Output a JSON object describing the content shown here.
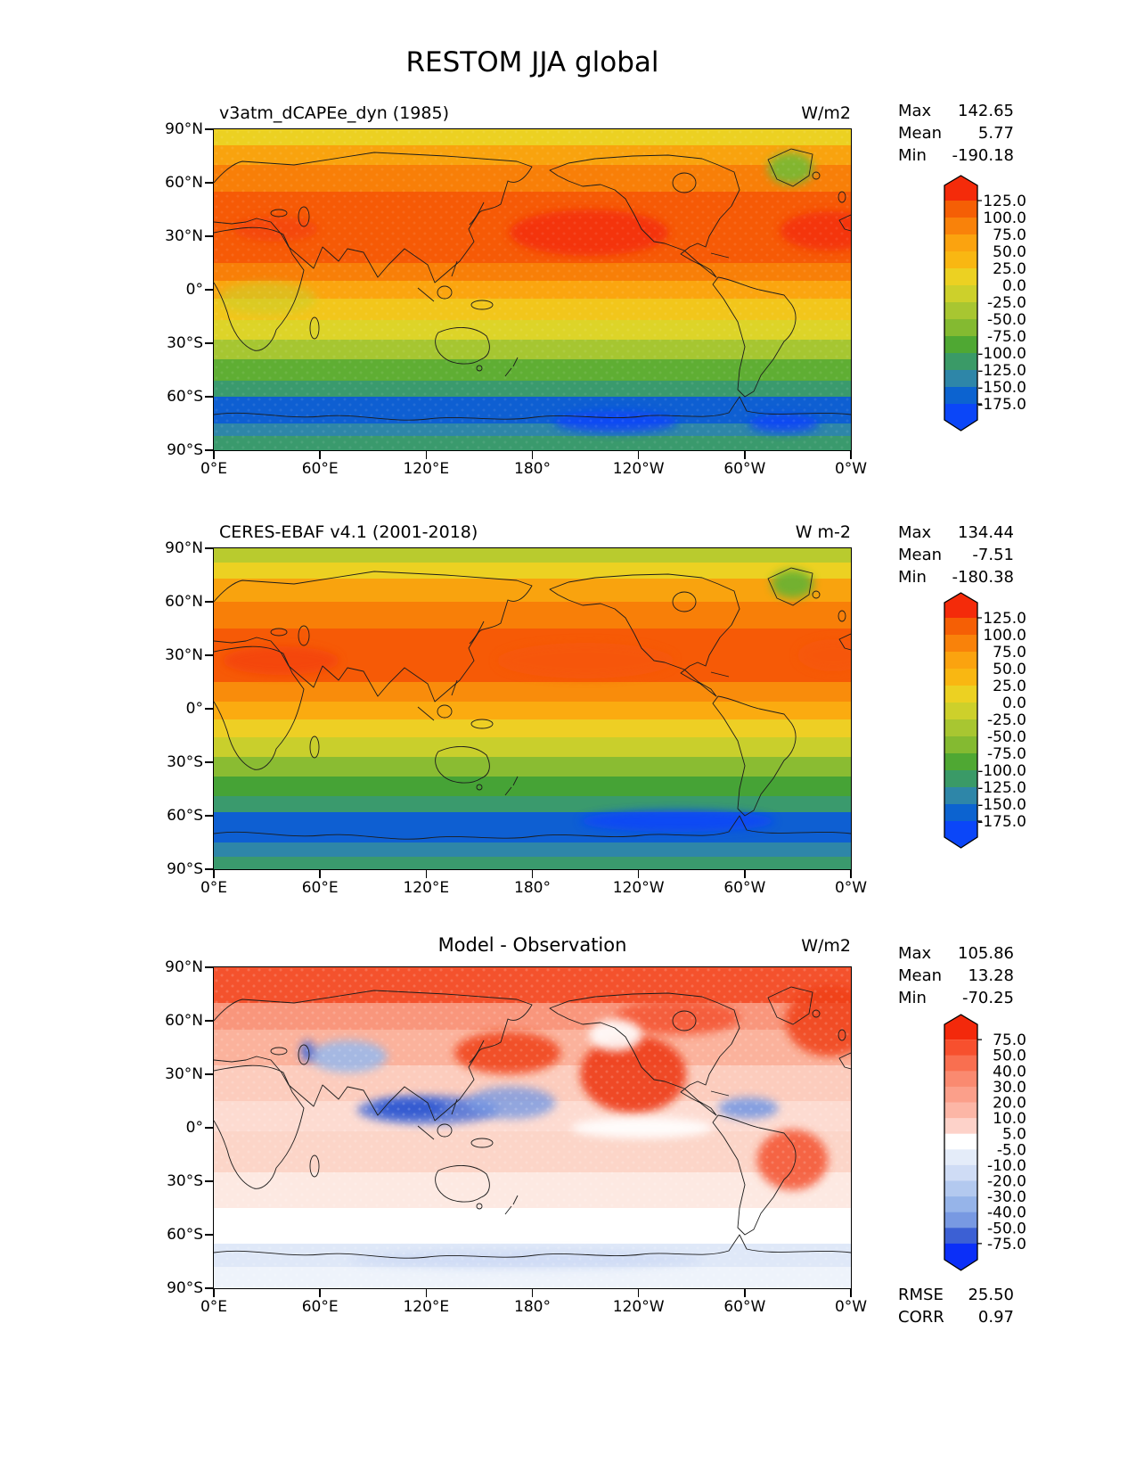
{
  "figure_title": "RESTOM JJA global",
  "axes": {
    "lat_ticks": [
      "90°N",
      "60°N",
      "30°N",
      "0°",
      "30°S",
      "60°S",
      "90°S"
    ],
    "lon_ticks": [
      "0°E",
      "60°E",
      "120°E",
      "180°",
      "120°W",
      "60°W",
      "0°W"
    ]
  },
  "panels": [
    {
      "id": "model",
      "title": "v3atm_dCAPEe_dyn (1985)",
      "units": "W/m2",
      "stats": [
        {
          "label": "Max",
          "value": "142.65"
        },
        {
          "label": "Mean",
          "value": "5.77"
        },
        {
          "label": "Min",
          "value": "-190.18"
        }
      ],
      "colorbar": {
        "cap_top": "#f42b0a",
        "cap_bottom": "#0b46f8",
        "cells": [
          "#f55f05",
          "#f9820a",
          "#fba30f",
          "#f9b712",
          "#ecd122",
          "#cdd02b",
          "#a8c631",
          "#84ba31",
          "#4fa833",
          "#3a9a67",
          "#2e86a8",
          "#0c63d0"
        ],
        "ticks": [
          "125.0",
          "100.0",
          "75.0",
          "50.0",
          "25.0",
          "0.0",
          "-25.0",
          "-50.0",
          "-75.0",
          "-100.0",
          "-125.0",
          "-150.0",
          "-175.0"
        ]
      },
      "stipple_opacity": 0.15,
      "bands": [
        [
          90,
          81,
          "#ecd122"
        ],
        [
          81,
          70,
          "#f9a30e"
        ],
        [
          70,
          55,
          "#f87f08"
        ],
        [
          55,
          15,
          "#f65a06"
        ],
        [
          15,
          5,
          "#f87f08"
        ],
        [
          5,
          -5,
          "#fba50f"
        ],
        [
          -5,
          -17,
          "#f2c61b"
        ],
        [
          -17,
          -28,
          "#ddd428"
        ],
        [
          -28,
          -39,
          "#a6c631"
        ],
        [
          -39,
          -51,
          "#5fae33"
        ],
        [
          -51,
          -60,
          "#3a9a6d"
        ],
        [
          -60,
          -75,
          "#0e5fd2"
        ],
        [
          -75,
          -82,
          "#2e86a8"
        ],
        [
          -82,
          -90,
          "#3a9a6d"
        ]
      ],
      "features": [
        {
          "name": "north-pacific-maximum",
          "lon": 212,
          "lat": 32,
          "rlon": 45,
          "rlat": 13,
          "color": "#f43108",
          "opacity": 0.95
        },
        {
          "name": "north-atlantic-maximum",
          "lon": 348,
          "lat": 33,
          "rlon": 28,
          "rlat": 11,
          "color": "#f43108",
          "opacity": 0.9
        },
        {
          "name": "mediterranean-warm",
          "lon": 35,
          "lat": 34,
          "rlon": 24,
          "rlat": 7,
          "color": "#f4440a",
          "opacity": 0.85
        },
        {
          "name": "greenland-negative",
          "lon": 326,
          "lat": 68,
          "rlon": 13,
          "rlat": 9,
          "color": "#7cb832",
          "opacity": 0.95
        },
        {
          "name": "africa-equatorial-green",
          "lon": 30,
          "lat": -5,
          "rlon": 28,
          "rlat": 9,
          "color": "#c9cf2c",
          "opacity": 0.55
        },
        {
          "name": "antarctic-deep-blue-west",
          "lon": 227,
          "lat": -74,
          "rlon": 35,
          "rlat": 6,
          "color": "#0b46f8",
          "opacity": 0.9
        },
        {
          "name": "antarctic-deep-blue-east",
          "lon": 322,
          "lat": -75,
          "rlon": 20,
          "rlat": 5,
          "color": "#0b46f8",
          "opacity": 0.9
        }
      ]
    },
    {
      "id": "obs",
      "title": "CERES-EBAF v4.1 (2001-2018)",
      "units": "W m-2",
      "stats": [
        {
          "label": "Max",
          "value": "134.44"
        },
        {
          "label": "Mean",
          "value": "-7.51"
        },
        {
          "label": "Min",
          "value": "-180.38"
        }
      ],
      "colorbar": {
        "cap_top": "#f42b0a",
        "cap_bottom": "#0b46f8",
        "cells": [
          "#f55f05",
          "#f9820a",
          "#fba30f",
          "#f9b712",
          "#ecd122",
          "#cdd02b",
          "#a8c631",
          "#84ba31",
          "#4fa833",
          "#3a9a67",
          "#2e86a8",
          "#0c63d0"
        ],
        "ticks": [
          "125.0",
          "100.0",
          "75.0",
          "50.0",
          "25.0",
          "0.0",
          "-25.0",
          "-50.0",
          "-75.0",
          "-100.0",
          "-125.0",
          "-150.0",
          "-175.0"
        ]
      },
      "stipple_opacity": 0,
      "bands": [
        [
          90,
          82,
          "#b9cb2e"
        ],
        [
          82,
          73,
          "#ecd122"
        ],
        [
          73,
          60,
          "#f9a30e"
        ],
        [
          60,
          45,
          "#f87f08"
        ],
        [
          45,
          15,
          "#f65a06"
        ],
        [
          15,
          4,
          "#f98c0b"
        ],
        [
          4,
          -6,
          "#fbab10"
        ],
        [
          -6,
          -16,
          "#eecf24"
        ],
        [
          -16,
          -27,
          "#c9cf2c"
        ],
        [
          -27,
          -38,
          "#8abc32"
        ],
        [
          -38,
          -49,
          "#46a336"
        ],
        [
          -49,
          -58,
          "#3a9a6d"
        ],
        [
          -58,
          -75,
          "#0e5fd2"
        ],
        [
          -75,
          -83,
          "#2e86a8"
        ],
        [
          -83,
          -90,
          "#3a9a6d"
        ]
      ],
      "features": [
        {
          "name": "sahara-arabia-warm",
          "lon": 38,
          "lat": 27,
          "rlon": 33,
          "rlat": 8,
          "color": "#f4440a",
          "opacity": 0.9
        },
        {
          "name": "north-pacific-warm",
          "lon": 210,
          "lat": 27,
          "rlon": 50,
          "rlat": 10,
          "color": "#f6560a",
          "opacity": 0.8
        },
        {
          "name": "north-atlantic-warm",
          "lon": 350,
          "lat": 30,
          "rlon": 20,
          "rlat": 9,
          "color": "#f6560a",
          "opacity": 0.8
        },
        {
          "name": "greenland-negative",
          "lon": 327,
          "lat": 70,
          "rlon": 12,
          "rlat": 8,
          "color": "#6cb232",
          "opacity": 0.95
        },
        {
          "name": "southern-ocean-deep-blue",
          "lon": 262,
          "lat": -63,
          "rlon": 55,
          "rlat": 6,
          "color": "#0b46f8",
          "opacity": 0.9
        }
      ]
    },
    {
      "id": "diff",
      "title": "Model - Observation",
      "units": "W/m2",
      "stats": [
        {
          "label": "Max",
          "value": "105.86"
        },
        {
          "label": "Mean",
          "value": "13.28"
        },
        {
          "label": "Min",
          "value": "-70.25"
        }
      ],
      "extra_stats": [
        {
          "label": "RMSE",
          "value": "25.50"
        },
        {
          "label": "CORR",
          "value": "0.97"
        }
      ],
      "colorbar": {
        "cap_top": "#f3290b",
        "cap_bottom": "#0b2ff8",
        "cells": [
          "#f7502e",
          "#f96f50",
          "#fa8a70",
          "#fb9f8a",
          "#fcb6a6",
          "#fdd2c9",
          "#ffffff",
          "#e4ecf9",
          "#cfdcf5",
          "#b3c9ef",
          "#96b4e9",
          "#7899e2",
          "#3c60d4"
        ],
        "ticks": [
          "75.0",
          "50.0",
          "40.0",
          "30.0",
          "20.0",
          "10.0",
          "5.0",
          "-5.0",
          "-10.0",
          "-20.0",
          "-30.0",
          "-40.0",
          "-50.0",
          "-75.0"
        ]
      },
      "stipple_opacity": 0.3,
      "bands": [
        [
          90,
          70,
          "#f4522d"
        ],
        [
          70,
          55,
          "#f9967c"
        ],
        [
          55,
          35,
          "#fbb29c"
        ],
        [
          35,
          15,
          "#fcccbd"
        ],
        [
          15,
          -2,
          "#fddbd1"
        ],
        [
          -2,
          -25,
          "#fcd5c8"
        ],
        [
          -25,
          -45,
          "#fde9e2"
        ],
        [
          -45,
          -65,
          "#ffffff"
        ],
        [
          -65,
          -78,
          "#dfe8f8"
        ],
        [
          -78,
          -90,
          "#eef3fb"
        ]
      ],
      "features": [
        {
          "name": "northeast-pacific-positive",
          "lon": 237,
          "lat": 30,
          "rlon": 30,
          "rlat": 22,
          "color": "#ee3a14",
          "opacity": 0.9
        },
        {
          "name": "northwest-pacific-positive",
          "lon": 166,
          "lat": 42,
          "rlon": 30,
          "rlat": 12,
          "color": "#f04018",
          "opacity": 0.85
        },
        {
          "name": "north-atlantic-positive",
          "lon": 348,
          "lat": 60,
          "rlon": 25,
          "rlat": 20,
          "color": "#f04018",
          "opacity": 0.85
        },
        {
          "name": "north-america-positive",
          "lon": 262,
          "lat": 62,
          "rlon": 35,
          "rlat": 10,
          "color": "#f4512d",
          "opacity": 0.8
        },
        {
          "name": "alaska-neutral-patch",
          "lon": 227,
          "lat": 52,
          "rlon": 15,
          "rlat": 9,
          "color": "#ffffff",
          "opacity": 0.9
        },
        {
          "name": "central-asia-negative",
          "lon": 76,
          "lat": 40,
          "rlon": 22,
          "rlat": 9,
          "color": "#9cb9ea",
          "opacity": 0.9
        },
        {
          "name": "caspian-negative-core",
          "lon": 53,
          "lat": 43,
          "rlon": 4,
          "rlat": 6,
          "color": "#4a6ed8",
          "opacity": 0.9
        },
        {
          "name": "indian-ocean-negative-band",
          "lon": 121,
          "lat": 10,
          "rlon": 40,
          "rlat": 8,
          "color": "#4a6ed8",
          "opacity": 0.85
        },
        {
          "name": "southeast-asia-negative-core",
          "lon": 111,
          "lat": 11,
          "rlon": 20,
          "rlat": 5,
          "color": "#2d56d0",
          "opacity": 0.9
        },
        {
          "name": "west-pacific-negative",
          "lon": 168,
          "lat": 14,
          "rlon": 25,
          "rlat": 9,
          "color": "#7899e2",
          "opacity": 0.8
        },
        {
          "name": "caribbean-negative",
          "lon": 302,
          "lat": 11,
          "rlon": 17,
          "rlat": 6,
          "color": "#7899e2",
          "opacity": 0.9
        },
        {
          "name": "south-america-positive",
          "lon": 327,
          "lat": -18,
          "rlon": 20,
          "rlat": 17,
          "color": "#f4512d",
          "opacity": 0.85
        },
        {
          "name": "equatorial-east-pacific-neutral",
          "lon": 242,
          "lat": 0,
          "rlon": 40,
          "rlat": 6,
          "color": "#ffffff",
          "opacity": 0.9
        },
        {
          "name": "antarctic-coastal-negative",
          "lon": 176,
          "lat": -74,
          "rlon": 100,
          "rlat": 5,
          "color": "#ccd9f4",
          "opacity": 0.8
        }
      ]
    }
  ],
  "chart_data": [
    {
      "type": "heatmap",
      "title": "v3atm_dCAPEe_dyn (1985)",
      "units": "W/m2",
      "projection": "global lat-lon, 0°E at left edge",
      "lon_ticks": [
        "0°E",
        "60°E",
        "120°E",
        "180°",
        "120°W",
        "60°W",
        "0°W"
      ],
      "lat_ticks": [
        "90°N",
        "60°N",
        "30°N",
        "0°",
        "30°S",
        "60°S",
        "90°S"
      ],
      "stats": {
        "max": 142.65,
        "mean": 5.77,
        "min": -190.18
      },
      "colorbar_ticks": [
        125,
        100,
        75,
        50,
        25,
        0,
        -25,
        -50,
        -75,
        -100,
        -125,
        -150,
        -175
      ],
      "colorbar_extend": "both",
      "zonal_mean_estimate": {
        "lat": [
          85,
          75,
          60,
          45,
          30,
          15,
          0,
          -15,
          -25,
          -35,
          -45,
          -55,
          -65,
          -75,
          -85
        ],
        "value": [
          20,
          60,
          85,
          105,
          115,
          90,
          65,
          30,
          0,
          -40,
          -80,
          -120,
          -165,
          -155,
          -115
        ]
      }
    },
    {
      "type": "heatmap",
      "title": "CERES-EBAF v4.1 (2001-2018)",
      "units": "W m-2",
      "projection": "global lat-lon, 0°E at left edge",
      "lon_ticks": [
        "0°E",
        "60°E",
        "120°E",
        "180°",
        "120°W",
        "60°W",
        "0°W"
      ],
      "lat_ticks": [
        "90°N",
        "60°N",
        "30°N",
        "0°",
        "30°S",
        "60°S",
        "90°S"
      ],
      "stats": {
        "max": 134.44,
        "mean": -7.51,
        "min": -180.38
      },
      "colorbar_ticks": [
        125,
        100,
        75,
        50,
        25,
        0,
        -25,
        -50,
        -75,
        -100,
        -125,
        -150,
        -175
      ],
      "colorbar_extend": "both",
      "zonal_mean_estimate": {
        "lat": [
          85,
          75,
          60,
          45,
          30,
          15,
          0,
          -15,
          -25,
          -35,
          -45,
          -55,
          -65,
          -75,
          -85
        ],
        "value": [
          -15,
          25,
          70,
          95,
          110,
          85,
          60,
          25,
          -5,
          -45,
          -85,
          -115,
          -160,
          -150,
          -110
        ]
      }
    },
    {
      "type": "heatmap",
      "title": "Model - Observation",
      "units": "W/m2",
      "projection": "global lat-lon, 0°E at left edge",
      "lon_ticks": [
        "0°E",
        "60°E",
        "120°E",
        "180°",
        "120°W",
        "60°W",
        "0°W"
      ],
      "lat_ticks": [
        "90°N",
        "60°N",
        "30°N",
        "0°",
        "30°S",
        "60°S",
        "90°S"
      ],
      "stats": {
        "max": 105.86,
        "mean": 13.28,
        "min": -70.25,
        "rmse": 25.5,
        "corr": 0.97
      },
      "colorbar_ticks": [
        75,
        50,
        40,
        30,
        20,
        10,
        5,
        -5,
        -10,
        -20,
        -30,
        -40,
        -50,
        -75
      ],
      "colorbar_extend": "both",
      "zonal_mean_estimate": {
        "lat": [
          85,
          75,
          60,
          45,
          30,
          15,
          0,
          -15,
          -25,
          -35,
          -45,
          -55,
          -65,
          -75,
          -85
        ],
        "value": [
          60,
          55,
          35,
          25,
          15,
          5,
          8,
          12,
          8,
          3,
          0,
          -2,
          -8,
          -5,
          -3
        ]
      }
    }
  ]
}
